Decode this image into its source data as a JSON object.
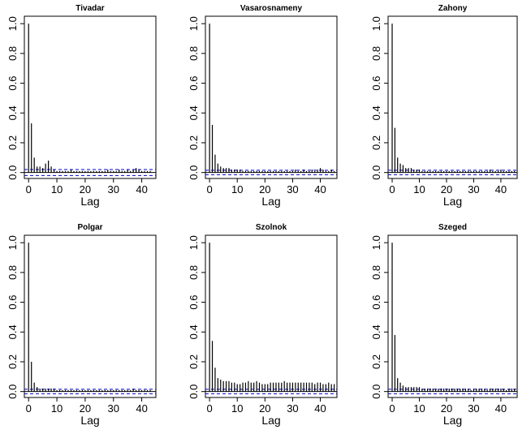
{
  "chart_data": [
    {
      "type": "bar",
      "title": "Tivadar",
      "xlabel": "Lag",
      "ylabel": "",
      "x": [
        0,
        1,
        2,
        3,
        4,
        5,
        6,
        7,
        8,
        9,
        10,
        11,
        12,
        13,
        14,
        15,
        16,
        17,
        18,
        19,
        20,
        21,
        22,
        23,
        24,
        25,
        26,
        27,
        28,
        29,
        30,
        31,
        32,
        33,
        34,
        35,
        36,
        37,
        38,
        39,
        40,
        41,
        42,
        43
      ],
      "values": [
        1.0,
        0.33,
        0.1,
        0.04,
        0.04,
        0.03,
        0.06,
        0.08,
        0.04,
        0.02,
        0.01,
        0.01,
        0.01,
        0.01,
        0.01,
        0.02,
        0.01,
        0.01,
        0.01,
        0.01,
        0.01,
        0.01,
        0.01,
        0.01,
        0.01,
        0.01,
        0.01,
        0.01,
        0.02,
        0.01,
        0.01,
        0.01,
        0.02,
        0.01,
        0.01,
        0.02,
        0.01,
        0.02,
        0.03,
        0.02,
        0.01,
        0.01,
        0.01,
        0.01
      ],
      "conf_band": 0.02,
      "xlim": [
        -1.5,
        45
      ],
      "ylim": [
        -0.04,
        1.05
      ],
      "xticks": [
        "0",
        "10",
        "20",
        "30",
        "40"
      ],
      "yticks": [
        "0.0",
        "0.2",
        "0.4",
        "0.6",
        "0.8",
        "1.0"
      ],
      "grid": false
    },
    {
      "type": "bar",
      "title": "Vasarosnameny",
      "xlabel": "Lag",
      "ylabel": "",
      "x": [
        0,
        1,
        2,
        3,
        4,
        5,
        6,
        7,
        8,
        9,
        10,
        11,
        12,
        13,
        14,
        15,
        16,
        17,
        18,
        19,
        20,
        21,
        22,
        23,
        24,
        25,
        26,
        27,
        28,
        29,
        30,
        31,
        32,
        33,
        34,
        35,
        36,
        37,
        38,
        39,
        40,
        41,
        42,
        43,
        44,
        45
      ],
      "values": [
        1.0,
        0.32,
        0.12,
        0.06,
        0.04,
        0.03,
        0.03,
        0.03,
        0.02,
        0.02,
        0.02,
        0.02,
        0.01,
        0.01,
        0.01,
        0.01,
        0.01,
        0.01,
        0.01,
        0.01,
        0.01,
        0.01,
        0.01,
        0.01,
        0.01,
        0.01,
        0.01,
        0.01,
        0.01,
        0.01,
        0.01,
        0.02,
        0.01,
        0.01,
        0.02,
        0.01,
        0.01,
        0.02,
        0.01,
        0.02,
        0.03,
        0.02,
        0.01,
        0.01,
        0.02,
        0.01
      ],
      "conf_band": 0.015,
      "xlim": [
        -1.5,
        46
      ],
      "ylim": [
        -0.04,
        1.05
      ],
      "xticks": [
        "0",
        "10",
        "20",
        "30",
        "40"
      ],
      "yticks": [
        "0.0",
        "0.2",
        "0.4",
        "0.6",
        "0.8",
        "1.0"
      ],
      "grid": false
    },
    {
      "type": "bar",
      "title": "Zahony",
      "xlabel": "Lag",
      "ylabel": "",
      "x": [
        0,
        1,
        2,
        3,
        4,
        5,
        6,
        7,
        8,
        9,
        10,
        11,
        12,
        13,
        14,
        15,
        16,
        17,
        18,
        19,
        20,
        21,
        22,
        23,
        24,
        25,
        26,
        27,
        28,
        29,
        30,
        31,
        32,
        33,
        34,
        35,
        36,
        37,
        38,
        39,
        40,
        41,
        42,
        43,
        44,
        45
      ],
      "values": [
        1.0,
        0.3,
        0.1,
        0.06,
        0.05,
        0.03,
        0.03,
        0.03,
        0.02,
        0.02,
        0.02,
        0.01,
        0.01,
        0.01,
        0.01,
        0.01,
        0.01,
        0.01,
        0.01,
        0.01,
        0.01,
        0.01,
        0.01,
        0.01,
        0.01,
        0.01,
        0.01,
        0.01,
        0.01,
        0.01,
        0.01,
        0.01,
        0.01,
        0.01,
        0.01,
        0.01,
        0.02,
        0.01,
        0.01,
        0.01,
        0.02,
        0.01,
        0.01,
        0.01,
        0.01,
        0.01
      ],
      "conf_band": 0.015,
      "xlim": [
        -1.5,
        46
      ],
      "ylim": [
        -0.04,
        1.05
      ],
      "xticks": [
        "0",
        "10",
        "20",
        "30",
        "40"
      ],
      "yticks": [
        "0.0",
        "0.2",
        "0.4",
        "0.6",
        "0.8",
        "1.0"
      ],
      "grid": false
    },
    {
      "type": "bar",
      "title": "Polgar",
      "xlabel": "Lag",
      "ylabel": "",
      "x": [
        0,
        1,
        2,
        3,
        4,
        5,
        6,
        7,
        8,
        9,
        10,
        11,
        12,
        13,
        14,
        15,
        16,
        17,
        18,
        19,
        20,
        21,
        22,
        23,
        24,
        25,
        26,
        27,
        28,
        29,
        30,
        31,
        32,
        33,
        34,
        35,
        36,
        37,
        38,
        39,
        40,
        41,
        42,
        43
      ],
      "values": [
        1.0,
        0.2,
        0.06,
        0.03,
        0.02,
        0.02,
        0.02,
        0.02,
        0.02,
        0.02,
        0.01,
        0.01,
        0.01,
        0.01,
        0.01,
        0.01,
        0.01,
        0.01,
        0.01,
        0.01,
        0.01,
        0.01,
        0.01,
        0.01,
        0.01,
        0.01,
        0.01,
        0.01,
        0.01,
        0.01,
        0.01,
        0.01,
        0.01,
        0.01,
        0.01,
        0.01,
        0.01,
        0.02,
        0.01,
        0.01,
        0.01,
        0.01,
        0.01,
        0.01
      ],
      "conf_band": 0.015,
      "xlim": [
        -1.5,
        45
      ],
      "ylim": [
        -0.04,
        1.05
      ],
      "xticks": [
        "0",
        "10",
        "20",
        "30",
        "40"
      ],
      "yticks": [
        "0.0",
        "0.2",
        "0.4",
        "0.6",
        "0.8",
        "1.0"
      ],
      "grid": false
    },
    {
      "type": "bar",
      "title": "Szolnok",
      "xlabel": "Lag",
      "ylabel": "",
      "x": [
        0,
        1,
        2,
        3,
        4,
        5,
        6,
        7,
        8,
        9,
        10,
        11,
        12,
        13,
        14,
        15,
        16,
        17,
        18,
        19,
        20,
        21,
        22,
        23,
        24,
        25,
        26,
        27,
        28,
        29,
        30,
        31,
        32,
        33,
        34,
        35,
        36,
        37,
        38,
        39,
        40,
        41,
        42,
        43,
        44,
        45
      ],
      "values": [
        1.0,
        0.34,
        0.16,
        0.09,
        0.08,
        0.07,
        0.07,
        0.07,
        0.06,
        0.06,
        0.05,
        0.05,
        0.06,
        0.06,
        0.07,
        0.06,
        0.06,
        0.07,
        0.06,
        0.05,
        0.05,
        0.05,
        0.06,
        0.06,
        0.06,
        0.06,
        0.06,
        0.07,
        0.06,
        0.06,
        0.06,
        0.06,
        0.06,
        0.06,
        0.06,
        0.06,
        0.06,
        0.06,
        0.05,
        0.06,
        0.06,
        0.05,
        0.05,
        0.06,
        0.05,
        0.05
      ],
      "conf_band": 0.015,
      "xlim": [
        -1.5,
        46
      ],
      "ylim": [
        -0.04,
        1.05
      ],
      "xticks": [
        "0",
        "10",
        "20",
        "30",
        "40"
      ],
      "yticks": [
        "0.0",
        "0.2",
        "0.4",
        "0.6",
        "0.8",
        "1.0"
      ],
      "grid": false
    },
    {
      "type": "bar",
      "title": "Szeged",
      "xlabel": "Lag",
      "ylabel": "",
      "x": [
        0,
        1,
        2,
        3,
        4,
        5,
        6,
        7,
        8,
        9,
        10,
        11,
        12,
        13,
        14,
        15,
        16,
        17,
        18,
        19,
        20,
        21,
        22,
        23,
        24,
        25,
        26,
        27,
        28,
        29,
        30,
        31,
        32,
        33,
        34,
        35,
        36,
        37,
        38,
        39,
        40,
        41,
        42,
        43,
        44,
        45
      ],
      "values": [
        1.0,
        0.38,
        0.09,
        0.06,
        0.04,
        0.03,
        0.03,
        0.03,
        0.03,
        0.03,
        0.03,
        0.02,
        0.02,
        0.02,
        0.02,
        0.02,
        0.02,
        0.02,
        0.02,
        0.02,
        0.02,
        0.02,
        0.02,
        0.02,
        0.02,
        0.02,
        0.02,
        0.02,
        0.02,
        0.01,
        0.02,
        0.02,
        0.02,
        0.02,
        0.02,
        0.01,
        0.02,
        0.02,
        0.02,
        0.02,
        0.02,
        0.02,
        0.01,
        0.02,
        0.02,
        0.02
      ],
      "conf_band": 0.015,
      "xlim": [
        -1.5,
        46
      ],
      "ylim": [
        -0.04,
        1.05
      ],
      "xticks": [
        "0",
        "10",
        "20",
        "30",
        "40"
      ],
      "yticks": [
        "0.0",
        "0.2",
        "0.4",
        "0.6",
        "0.8",
        "1.0"
      ],
      "grid": false
    }
  ],
  "colors": {
    "bars": "#000000",
    "conf_band": "#0000cc",
    "axis": "#000000",
    "background": "#ffffff"
  }
}
